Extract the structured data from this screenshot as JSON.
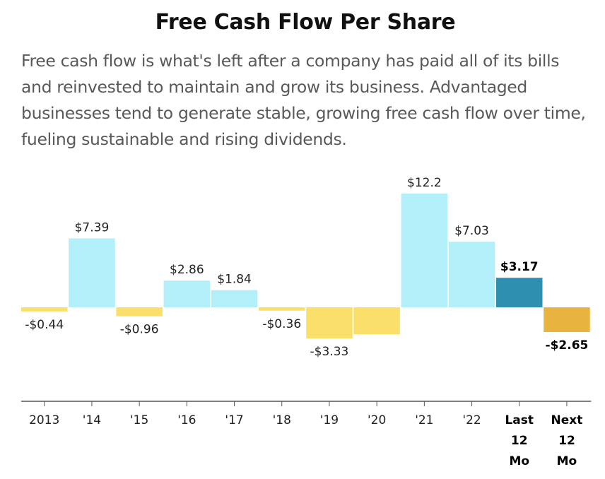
{
  "title": "Free Cash Flow Per Share",
  "description": "Free cash flow is what's left after a company has paid all of its bills and reinvested to maintain and grow its business. Advantaged businesses tend to generate stable, growing free cash flow over time, fueling sustainable and rising dividends.",
  "colors": {
    "positive": "#b3eff8",
    "negative": "#fae06a",
    "current_positive": "#2f8fb0",
    "forecast_negative": "#e8b33f",
    "axis": "#555555"
  },
  "chart_data": {
    "type": "bar",
    "categories": [
      "2013",
      "'14",
      "'15",
      "'16",
      "'17",
      "'18",
      "'19",
      "'20",
      "'21",
      "'22",
      "Last 12 Mo",
      "Next 12 Mo"
    ],
    "category_lines": [
      [
        "2013"
      ],
      [
        "'14"
      ],
      [
        "'15"
      ],
      [
        "'16"
      ],
      [
        "'17"
      ],
      [
        "'18"
      ],
      [
        "'19"
      ],
      [
        "'20"
      ],
      [
        "'21"
      ],
      [
        "'22"
      ],
      [
        "Last",
        "12",
        "Mo"
      ],
      [
        "Next",
        "12",
        "Mo"
      ]
    ],
    "values": [
      -0.44,
      7.39,
      -0.96,
      2.86,
      1.84,
      -0.36,
      -3.33,
      -2.9,
      12.2,
      7.03,
      3.17,
      -2.65
    ],
    "data_labels": [
      "-$0.44",
      "$7.39",
      "-$0.96",
      "$2.86",
      "$1.84",
      "-$0.36",
      "-$3.33",
      "",
      "$12.2",
      "$7.03",
      "$3.17",
      "-$2.65"
    ],
    "highlight": [
      false,
      false,
      false,
      false,
      false,
      false,
      false,
      false,
      false,
      false,
      true,
      true
    ],
    "bar_styles": [
      "normal",
      "normal",
      "normal",
      "normal",
      "normal",
      "normal",
      "normal",
      "normal",
      "normal",
      "normal",
      "current",
      "forecast"
    ],
    "ylim": [
      -10,
      12.2
    ],
    "grid": false,
    "legend": "none"
  }
}
